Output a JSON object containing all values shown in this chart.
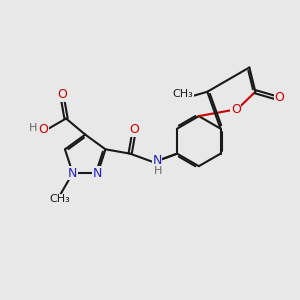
{
  "bg_color": "#e8e8e8",
  "bond_color": "#1a1a1a",
  "bond_width": 1.5,
  "dbo": 0.06,
  "atom_colors": {
    "O": "#cc0000",
    "N": "#2222cc",
    "H": "#666666",
    "C": "#1a1a1a"
  },
  "font_size": 9,
  "fig_bg": "#e8e8e8"
}
